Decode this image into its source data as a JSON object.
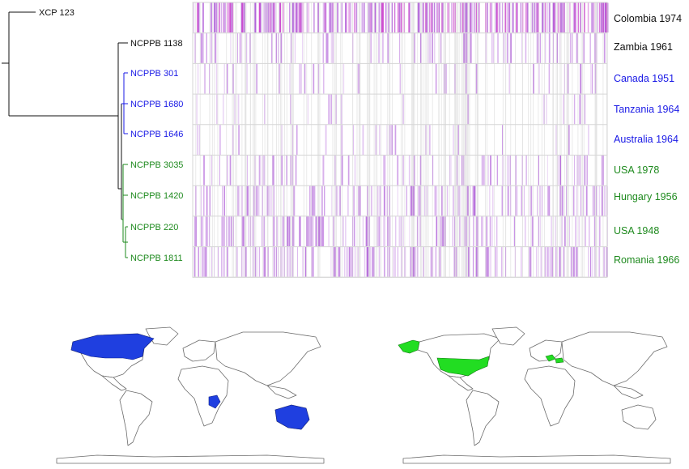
{
  "colors": {
    "black": "#111111",
    "blue": "#1a1ae6",
    "green": "#1e8a1e",
    "heatmap_mark": "#b060d8",
    "heatmap_mark_strong": "#cc44cc",
    "heatmap_grid": "#d6d6d6",
    "map_blue": "#1f3fe0",
    "map_green": "#22dd22",
    "map_outline": "#6b6b6b"
  },
  "tree": {
    "tips": [
      {
        "label": "XCP 123",
        "group": "black"
      },
      {
        "label": "NCPPB 1138",
        "group": "black"
      },
      {
        "label": "NCPPB 301",
        "group": "blue"
      },
      {
        "label": "NCPPB 1680",
        "group": "blue"
      },
      {
        "label": "NCPPB 1646",
        "group": "blue"
      },
      {
        "label": "NCPPB 3035",
        "group": "green"
      },
      {
        "label": "NCPPB 1420",
        "group": "green"
      },
      {
        "label": "NCPPB 220",
        "group": "green"
      },
      {
        "label": "NCPPB 1811",
        "group": "green"
      }
    ]
  },
  "heatmap": {
    "rows": [
      {
        "location": "Colombia 1974",
        "group": "black",
        "density": 0.55,
        "strong": true
      },
      {
        "location": "Zambia 1961",
        "group": "black",
        "density": 0.18,
        "strong": false
      },
      {
        "location": "Canada 1951",
        "group": "blue",
        "density": 0.09,
        "strong": false
      },
      {
        "location": "Tanzania 1964",
        "group": "blue",
        "density": 0.05,
        "strong": false
      },
      {
        "location": "Australia 1964",
        "group": "blue",
        "density": 0.07,
        "strong": false
      },
      {
        "location": "USA 1978",
        "group": "green",
        "density": 0.17,
        "strong": false
      },
      {
        "location": "Hungary 1956",
        "group": "green",
        "density": 0.3,
        "strong": false
      },
      {
        "location": "USA 1948",
        "group": "green",
        "density": 0.32,
        "strong": false
      },
      {
        "location": "Romania 1966",
        "group": "green",
        "density": 0.36,
        "strong": false
      }
    ]
  },
  "maps": [
    {
      "highlighted": [
        "Canada",
        "Tanzania",
        "Australia"
      ],
      "fill": "map_blue"
    },
    {
      "highlighted": [
        "USA",
        "Alaska",
        "Hungary",
        "Romania"
      ],
      "fill": "map_green"
    }
  ]
}
